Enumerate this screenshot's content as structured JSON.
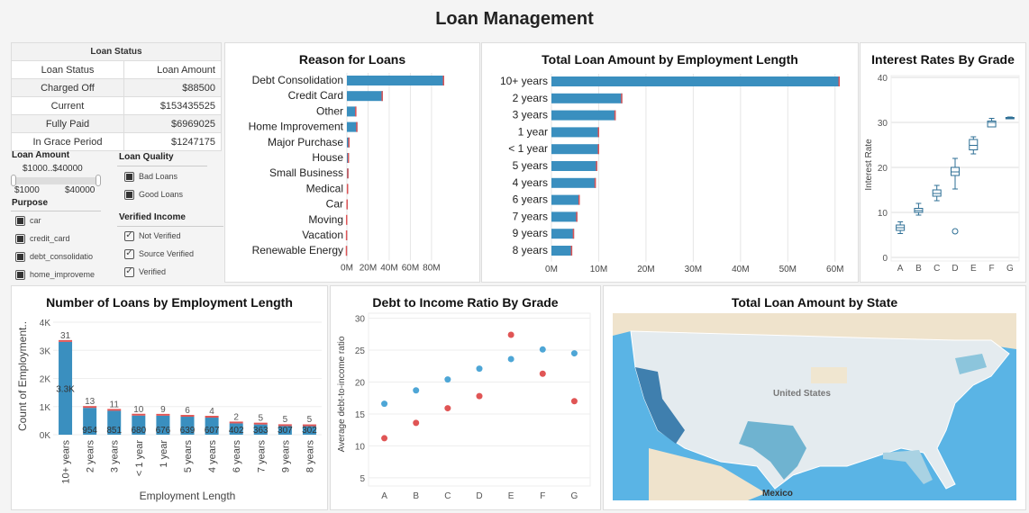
{
  "title": "Loan Management",
  "loan_status": {
    "caption": "Loan Status",
    "headers": [
      "Loan Status",
      "Loan Amount"
    ],
    "rows": [
      [
        "Charged Off",
        "$88500"
      ],
      [
        "Current",
        "$153435525"
      ],
      [
        "Fully Paid",
        "$6969025"
      ],
      [
        "In Grace Period",
        "$1247175"
      ]
    ]
  },
  "filters": {
    "loan_amount": {
      "label": "Loan Amount",
      "range": "$1000..$40000",
      "min": "$1000",
      "max": "$40000"
    },
    "purpose": {
      "label": "Purpose",
      "items": [
        "car",
        "credit_card",
        "debt_consolidatio",
        "home_improveme"
      ]
    },
    "loan_quality": {
      "label": "Loan Quality",
      "items": [
        "Bad Loans",
        "Good Loans"
      ]
    },
    "verified_income": {
      "label": "Verified Income",
      "items": [
        "Not Verified",
        "Source Verified",
        "Verified"
      ]
    }
  },
  "colors": {
    "blue": "#3a8fbf",
    "red": "#e05555",
    "box": "#2e6f95"
  },
  "chart_data": [
    {
      "id": "reason",
      "type": "bar",
      "title": "Reason for Loans",
      "orientation": "horizontal",
      "categories": [
        "Debt Consolidation",
        "Credit Card",
        "Other",
        "Home Improvement",
        "Major Purchase",
        "House",
        "Small Business",
        "Medical",
        "Car",
        "Moving",
        "Vacation",
        "Renewable Energy"
      ],
      "values": [
        92,
        34,
        9,
        10,
        2.5,
        2,
        1.5,
        1.2,
        0.8,
        0.4,
        0.3,
        0.2
      ],
      "ticks": [
        "0M",
        "20M",
        "40M",
        "60M",
        "80M"
      ],
      "xlim": [
        0,
        92
      ]
    },
    {
      "id": "emp",
      "type": "bar",
      "title": "Total Loan Amount by Employment Length",
      "orientation": "horizontal",
      "categories": [
        "10+ years",
        "2 years",
        "3 years",
        "1 year",
        "< 1 year",
        "5 years",
        "4 years",
        "6 years",
        "7 years",
        "9 years",
        "8 years"
      ],
      "values": [
        61,
        15,
        13.6,
        10.1,
        10.1,
        9.7,
        9.4,
        6,
        5.5,
        4.8,
        4.4
      ],
      "ticks": [
        "0M",
        "10M",
        "20M",
        "30M",
        "40M",
        "50M",
        "60M"
      ],
      "xlim": [
        0,
        61
      ]
    },
    {
      "id": "interest",
      "type": "box",
      "title": "Interest Rates By Grade",
      "ylabel": "Interest Rate",
      "categories": [
        "A",
        "B",
        "C",
        "D",
        "E",
        "F",
        "G"
      ],
      "ticks": [
        "0",
        "10",
        "20",
        "30",
        "40"
      ],
      "ylim": [
        0,
        40
      ],
      "boxes": [
        [
          5.3,
          6,
          6.6,
          7.2,
          7.9
        ],
        [
          9.4,
          10,
          10.4,
          10.9,
          12
        ],
        [
          12.6,
          13.6,
          14.2,
          15,
          16
        ],
        [
          15.2,
          18.2,
          19,
          20,
          22
        ],
        [
          23,
          23.9,
          24.9,
          26.2,
          26.8
        ],
        [
          29,
          29,
          30,
          30.3,
          30.9
        ],
        [
          30.8,
          30.8,
          31,
          31.1,
          31.2
        ]
      ],
      "outliers": [
        [
          3,
          5.8
        ]
      ]
    },
    {
      "id": "count",
      "type": "bar",
      "title": "Number of Loans by Employment Length",
      "xlabel": "Employment Length",
      "ylabel": "Count of Employment..",
      "categories": [
        "10+ years",
        "2 years",
        "3 years",
        "< 1 year",
        "1 year",
        "5 years",
        "4 years",
        "6 years",
        "7 years",
        "9 years",
        "8 years"
      ],
      "series": [
        {
          "name": "Good",
          "values": [
            3300,
            954,
            851,
            680,
            676,
            639,
            607,
            402,
            363,
            307,
            302
          ],
          "labels": [
            "3.3K",
            "954",
            "851",
            "680",
            "676",
            "639",
            "607",
            "402",
            "363",
            "307",
            "302"
          ]
        },
        {
          "name": "Bad",
          "values": [
            31,
            13,
            11,
            10,
            9,
            6,
            4,
            2,
            5,
            5,
            5
          ],
          "labels": [
            "31",
            "13",
            "11",
            "10",
            "9",
            "6",
            "4",
            "2",
            "5",
            "5",
            "5"
          ]
        }
      ],
      "ticks": [
        "0K",
        "1K",
        "2K",
        "3K",
        "4K"
      ],
      "ylim": [
        0,
        4000
      ]
    },
    {
      "id": "dti",
      "type": "scatter",
      "title": "Debt to Income Ratio By Grade",
      "ylabel": "Average debt-to-income ratio",
      "categories": [
        "A",
        "B",
        "C",
        "D",
        "E",
        "F",
        "G"
      ],
      "ticks": [
        "5",
        "10",
        "15",
        "20",
        "25",
        "30"
      ],
      "ylim": [
        4,
        30.5
      ],
      "series": [
        {
          "name": "blue",
          "values": [
            16.6,
            18.7,
            20.4,
            22.1,
            23.6,
            25.1,
            24.5
          ]
        },
        {
          "name": "red",
          "values": [
            11.2,
            13.6,
            15.9,
            17.8,
            27.4,
            21.3,
            17
          ]
        }
      ]
    }
  ],
  "map": {
    "title": "Total Loan Amount by State",
    "labels": [
      "United States",
      "Mexico"
    ]
  }
}
